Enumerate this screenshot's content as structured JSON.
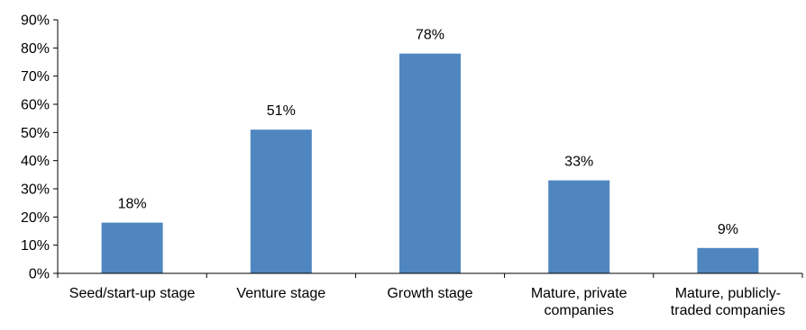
{
  "chart_data": {
    "type": "bar",
    "categories": [
      [
        "Seed/start-up stage"
      ],
      [
        "Venture stage"
      ],
      [
        "Growth stage"
      ],
      [
        "Mature, private",
        "companies"
      ],
      [
        "Mature, publicly-",
        "traded companies"
      ]
    ],
    "values": [
      18,
      51,
      78,
      33,
      9
    ],
    "data_labels": [
      "18%",
      "51%",
      "78%",
      "33%",
      "9%"
    ],
    "ylim": [
      0,
      90
    ],
    "y_ticks": [
      "0%",
      "10%",
      "20%",
      "30%",
      "40%",
      "50%",
      "60%",
      "70%",
      "80%",
      "90%"
    ],
    "bar_color": "#4f86c0",
    "axis_color": "#000000",
    "grid": false,
    "legend": "none",
    "title": "",
    "xlabel": "",
    "ylabel": ""
  }
}
